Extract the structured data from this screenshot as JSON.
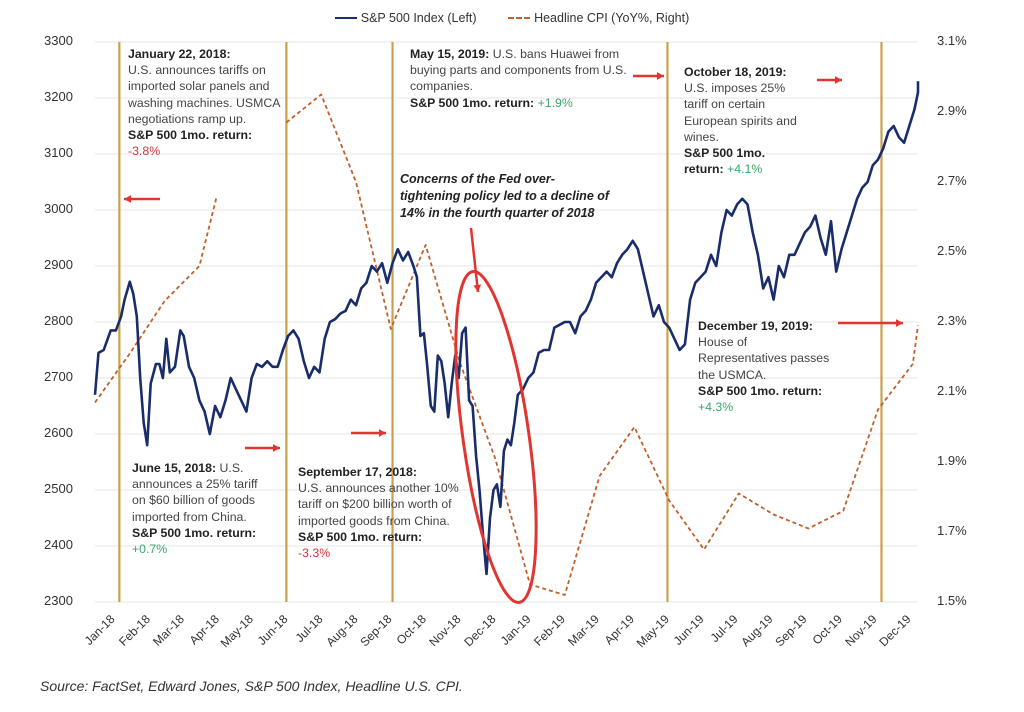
{
  "legend": {
    "sp500": "S&P 500 Index (Left)",
    "cpi": "Headline CPI (YoY%, Right)"
  },
  "colors": {
    "sp500": "#1a2d6b",
    "cpi": "#c0602a",
    "event_line": "#c9a14a",
    "arrow": "#e03530",
    "negative": "#d0343b",
    "positive": "#3aa86b",
    "grid": "#e6e6e6"
  },
  "annotations": {
    "jan2018": {
      "date": "January 22, 2018:",
      "text": "U.S. announces tariffs on imported solar panels and washing machines. USMCA negotiations ramp up.",
      "return_label": "S&P 500 1mo. return:",
      "return": "-3.8%"
    },
    "jun2018": {
      "date": "June 15, 2018:",
      "text": "U.S. announces a 25% tariff on $60 billion of goods imported from China.",
      "return_label": "S&P 500 1mo. return:",
      "return": "+0.7%"
    },
    "sep2018": {
      "date": "September 17, 2018:",
      "text": "U.S. announces another 10% tariff on $200 billion worth of imported goods from China.",
      "return_label": "S&P 500 1mo. return:",
      "return": "-3.3%"
    },
    "may2019": {
      "date": "May 15, 2019:",
      "text": "U.S. bans Huawei from buying parts and components from U.S. companies.",
      "return_label": "S&P 500 1mo. return:",
      "return": "+1.9%"
    },
    "oct2019": {
      "date": "October 18, 2019:",
      "text": "U.S. imposes 25% tariff on certain European spirits and wines.",
      "return_label": "S&P 500 1mo. return:",
      "return": "+4.1%"
    },
    "dec2019": {
      "date": "December 19, 2019:",
      "text": "House of Representatives passes the USMCA.",
      "return_label": "S&P 500 1mo. return:",
      "return": "+4.3%"
    },
    "fed_callout": "Concerns of the Fed over-tightening policy led to a decline of 14% in the fourth quarter of 2018"
  },
  "source": "Source: FactSet, Edward Jones, S&P 500 Index, Headline U.S. CPI.",
  "chart_data": {
    "type": "line",
    "title": "",
    "xlabel": "",
    "ylabel_left": "S&P 500 Index",
    "ylabel_right": "Headline CPI (YoY%)",
    "x_tick_labels": [
      "Jan-18",
      "Feb-18",
      "Mar-18",
      "Apr-18",
      "May-18",
      "Jun-18",
      "Jul-18",
      "Aug-18",
      "Sep-18",
      "Oct-18",
      "Nov-18",
      "Dec-18",
      "Jan-19",
      "Feb-19",
      "Mar-19",
      "Apr-19",
      "May-19",
      "Jun-19",
      "Jul-19",
      "Aug-19",
      "Sep-19",
      "Oct-19",
      "Nov-19",
      "Dec-19"
    ],
    "ylim_left": [
      2300,
      3300
    ],
    "yticks_left": [
      "2300",
      "2400",
      "2500",
      "2600",
      "2700",
      "2800",
      "2900",
      "3000",
      "3100",
      "3200",
      "3300"
    ],
    "ylim_right": [
      1.5,
      3.1
    ],
    "yticks_right": [
      "1.5%",
      "1.7%",
      "1.9%",
      "2.1%",
      "2.3%",
      "2.5%",
      "2.7%",
      "2.9%",
      "3.1%"
    ],
    "grid": true,
    "legend_position": "top-center",
    "x_range_months": [
      0,
      24
    ],
    "event_lines_months": [
      0.7,
      5.5,
      8.55,
      16.45,
      22.6,
      24.6
    ],
    "series": [
      {
        "name": "S&P 500 Index (Left)",
        "axis": "left",
        "style": "solid",
        "x_months": [
          0,
          0.1,
          0.25,
          0.45,
          0.6,
          0.75,
          0.85,
          1.0,
          1.1,
          1.2,
          1.3,
          1.4,
          1.5,
          1.6,
          1.75,
          1.85,
          1.95,
          2.05,
          2.15,
          2.3,
          2.45,
          2.55,
          2.7,
          2.85,
          3.0,
          3.15,
          3.3,
          3.45,
          3.6,
          3.75,
          3.9,
          4.05,
          4.2,
          4.35,
          4.5,
          4.65,
          4.8,
          4.95,
          5.1,
          5.25,
          5.4,
          5.55,
          5.7,
          5.85,
          6.0,
          6.15,
          6.3,
          6.45,
          6.6,
          6.75,
          6.9,
          7.05,
          7.2,
          7.35,
          7.5,
          7.65,
          7.8,
          7.95,
          8.1,
          8.25,
          8.4,
          8.55,
          8.7,
          8.85,
          9.0,
          9.15,
          9.25,
          9.35,
          9.45,
          9.55,
          9.65,
          9.75,
          9.85,
          9.95,
          10.05,
          10.15,
          10.25,
          10.35,
          10.45,
          10.55,
          10.65,
          10.75,
          10.85,
          10.95,
          11.05,
          11.15,
          11.25,
          11.35,
          11.45,
          11.55,
          11.65,
          11.75,
          11.85,
          11.95,
          12.05,
          12.15,
          12.3,
          12.45,
          12.6,
          12.75,
          12.9,
          13.05,
          13.2,
          13.35,
          13.5,
          13.65,
          13.8,
          13.95,
          14.1,
          14.25,
          14.4,
          14.55,
          14.7,
          14.85,
          15.0,
          15.15,
          15.3,
          15.45,
          15.6,
          15.75,
          15.9,
          16.05,
          16.2,
          16.35,
          16.5,
          16.65,
          16.8,
          16.95,
          17.1,
          17.25,
          17.4,
          17.55,
          17.7,
          17.85,
          18.0,
          18.15,
          18.3,
          18.45,
          18.6,
          18.75,
          18.9,
          19.05,
          19.2,
          19.35,
          19.5,
          19.65,
          19.8,
          19.95,
          20.1,
          20.25,
          20.4,
          20.55,
          20.7,
          20.85,
          21.0,
          21.15,
          21.3,
          21.45,
          21.6,
          21.75,
          21.9,
          22.05,
          22.2,
          22.35,
          22.5,
          22.65,
          22.8,
          22.95,
          23.1,
          23.25,
          23.4,
          23.55,
          23.7,
          23.85,
          24.0
        ],
        "values": [
          2670,
          2745,
          2750,
          2785,
          2785,
          2810,
          2840,
          2872,
          2850,
          2810,
          2700,
          2620,
          2580,
          2690,
          2725,
          2725,
          2700,
          2770,
          2710,
          2720,
          2785,
          2775,
          2720,
          2700,
          2660,
          2640,
          2600,
          2650,
          2630,
          2660,
          2700,
          2680,
          2660,
          2640,
          2700,
          2725,
          2720,
          2730,
          2720,
          2720,
          2750,
          2775,
          2785,
          2770,
          2730,
          2700,
          2720,
          2710,
          2770,
          2800,
          2805,
          2815,
          2820,
          2840,
          2830,
          2860,
          2870,
          2900,
          2890,
          2905,
          2870,
          2905,
          2930,
          2910,
          2925,
          2900,
          2880,
          2775,
          2780,
          2720,
          2650,
          2640,
          2740,
          2730,
          2690,
          2630,
          2690,
          2740,
          2700,
          2780,
          2790,
          2660,
          2650,
          2560,
          2500,
          2420,
          2350,
          2450,
          2500,
          2510,
          2470,
          2570,
          2590,
          2580,
          2620,
          2670,
          2680,
          2700,
          2710,
          2745,
          2750,
          2750,
          2790,
          2795,
          2800,
          2800,
          2780,
          2810,
          2820,
          2840,
          2870,
          2880,
          2890,
          2880,
          2905,
          2920,
          2930,
          2945,
          2930,
          2890,
          2850,
          2810,
          2830,
          2800,
          2790,
          2770,
          2750,
          2760,
          2840,
          2870,
          2880,
          2890,
          2920,
          2900,
          2960,
          3000,
          2990,
          3010,
          3020,
          3010,
          2960,
          2920,
          2860,
          2880,
          2840,
          2900,
          2880,
          2920,
          2920,
          2940,
          2960,
          2970,
          2990,
          2950,
          2920,
          2980,
          2890,
          2930,
          2960,
          2990,
          3020,
          3040,
          3050,
          3080,
          3090,
          3110,
          3140,
          3150,
          3130,
          3120,
          3150,
          3180,
          3210,
          3225,
          3230,
          3240,
          3230
        ]
      },
      {
        "name": "Headline CPI (YoY%, Right)",
        "axis": "right",
        "style": "dashed",
        "x_months": [
          0,
          1,
          2,
          3,
          3.5,
          4.5,
          5.5,
          6.5,
          7.5,
          8.5,
          9.5,
          10.5,
          11.5,
          12.5,
          13.5,
          14.5,
          15.5,
          16.5,
          17.5,
          18.5,
          19.5,
          20.5,
          21.5,
          22.5,
          23.5,
          24.5
        ],
        "values": [
          2.07,
          2.21,
          2.36,
          2.46,
          2.66,
          null,
          2.87,
          2.95,
          2.7,
          2.28,
          2.52,
          2.18,
          1.91,
          1.55,
          1.52,
          1.86,
          2.0,
          1.79,
          1.65,
          1.81,
          1.75,
          1.71,
          1.76,
          2.05,
          2.18,
          2.29
        ]
      }
    ]
  }
}
